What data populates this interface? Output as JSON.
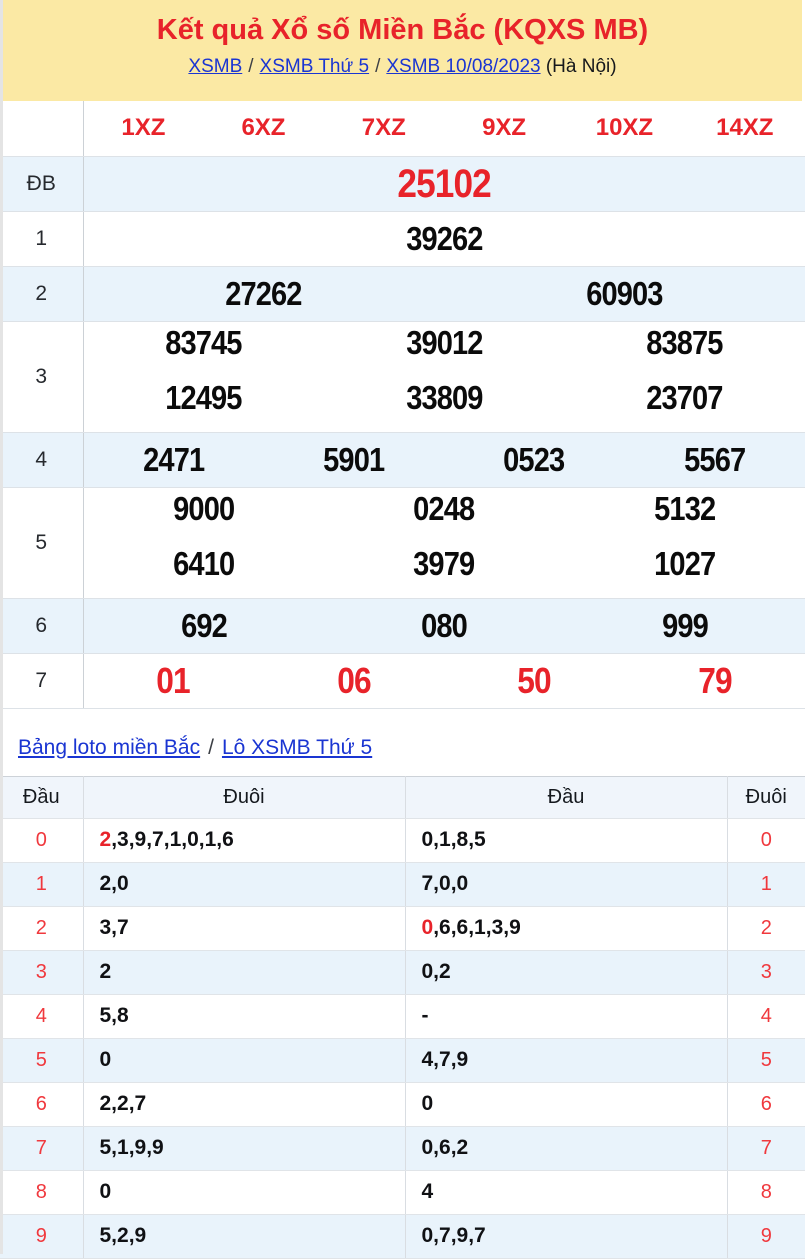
{
  "theme": {
    "banner_bg": "#fbe9a4",
    "accent_red": "#e8232a",
    "link_blue": "#1a35d2",
    "row_blue": "#e9f3fb",
    "loto_header_bg": "#f0f5fb",
    "loto_red": "#f0383d",
    "border_gray": "#d9dde2"
  },
  "header": {
    "title": "Kết quả Xổ số Miền Bắc (KQXS MB)",
    "breadcrumb": {
      "links": [
        "XSMB",
        "XSMB Thứ 5",
        "XSMB 10/08/2023"
      ],
      "separator": "/",
      "suffix": "(Hà Nội)"
    }
  },
  "results_table": {
    "column_headers": [
      "1XZ",
      "6XZ",
      "7XZ",
      "9XZ",
      "10XZ",
      "14XZ"
    ],
    "rows": {
      "db": {
        "label": "ĐB",
        "value": "25102"
      },
      "r1": {
        "label": "1",
        "value": "39262"
      },
      "r2": {
        "label": "2",
        "values": [
          "27262",
          "60903"
        ]
      },
      "r3": {
        "label": "3",
        "line1": [
          "83745",
          "39012",
          "83875"
        ],
        "line2": [
          "12495",
          "33809",
          "23707"
        ]
      },
      "r4": {
        "label": "4",
        "values": [
          "2471",
          "5901",
          "0523",
          "5567"
        ]
      },
      "r5": {
        "label": "5",
        "line1": [
          "9000",
          "0248",
          "5132"
        ],
        "line2": [
          "6410",
          "3979",
          "1027"
        ]
      },
      "r6": {
        "label": "6",
        "values": [
          "692",
          "080",
          "999"
        ]
      },
      "r7": {
        "label": "7",
        "values": [
          "01",
          "06",
          "50",
          "79"
        ]
      }
    }
  },
  "loto": {
    "links": [
      "Bảng loto miền Bắc",
      "Lô XSMB Thứ 5"
    ],
    "separator": "/",
    "column_headers": [
      "Đầu",
      "Đuôi",
      "Đầu",
      "Đuôi"
    ],
    "rows": [
      {
        "dau": "0",
        "duoi_red": "2",
        "duoi_rest": ",3,9,7,1,0,1,6",
        "dau2_red": "",
        "dau2_rest": "0,1,8,5",
        "duoi": "0"
      },
      {
        "dau": "1",
        "duoi_red": "",
        "duoi_rest": "2,0",
        "dau2_red": "",
        "dau2_rest": "7,0,0",
        "duoi": "1"
      },
      {
        "dau": "2",
        "duoi_red": "",
        "duoi_rest": "3,7",
        "dau2_red": "0",
        "dau2_rest": ",6,6,1,3,9",
        "duoi": "2"
      },
      {
        "dau": "3",
        "duoi_red": "",
        "duoi_rest": "2",
        "dau2_red": "",
        "dau2_rest": "0,2",
        "duoi": "3"
      },
      {
        "dau": "4",
        "duoi_red": "",
        "duoi_rest": "5,8",
        "dau2_red": "",
        "dau2_rest": "-",
        "duoi": "4"
      },
      {
        "dau": "5",
        "duoi_red": "",
        "duoi_rest": "0",
        "dau2_red": "",
        "dau2_rest": "4,7,9",
        "duoi": "5"
      },
      {
        "dau": "6",
        "duoi_red": "",
        "duoi_rest": "2,2,7",
        "dau2_red": "",
        "dau2_rest": "0",
        "duoi": "6"
      },
      {
        "dau": "7",
        "duoi_red": "",
        "duoi_rest": "5,1,9,9",
        "dau2_red": "",
        "dau2_rest": "0,6,2",
        "duoi": "7"
      },
      {
        "dau": "8",
        "duoi_red": "",
        "duoi_rest": "0",
        "dau2_red": "",
        "dau2_rest": "4",
        "duoi": "8"
      },
      {
        "dau": "9",
        "duoi_red": "",
        "duoi_rest": "5,2,9",
        "dau2_red": "",
        "dau2_rest": "0,7,9,7",
        "duoi": "9"
      }
    ]
  }
}
